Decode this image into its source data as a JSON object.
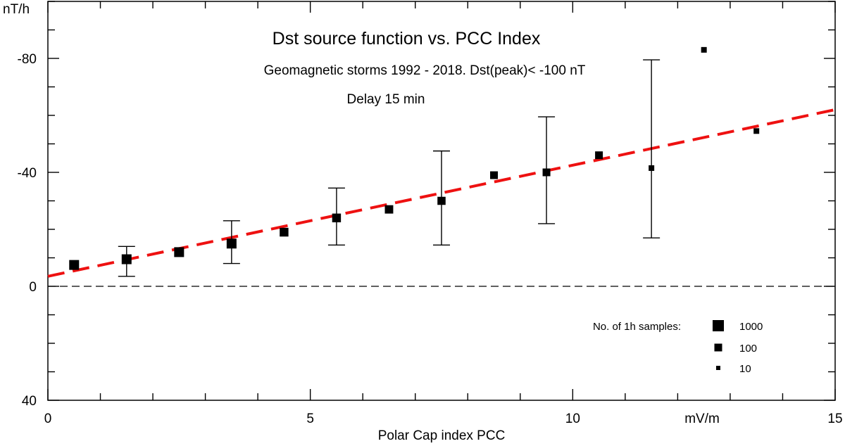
{
  "chart_data": {
    "type": "scatter",
    "title": "Dst source function vs. PCC Index",
    "subtitle": "Geomagnetic storms 1992 - 2018.   Dst(peak)< -100 nT",
    "annotation": "Delay 15 min",
    "xlabel": "Polar Cap index  PCC",
    "x_unit": "mV/m",
    "ylabel": "nT/h",
    "xlim": [
      0,
      15
    ],
    "ylim": [
      40,
      -100
    ],
    "y_inverted": true,
    "x_ticks": [
      0,
      5,
      10,
      15
    ],
    "x_tick_labels": [
      "0",
      "5",
      "10",
      "15"
    ],
    "y_ticks": [
      -80,
      -40,
      0,
      40
    ],
    "y_tick_labels": [
      "-80",
      "-40",
      "0",
      "40"
    ],
    "zero_line": true,
    "fit_line": {
      "style": "dashed",
      "color": "#ee1111",
      "x": [
        0,
        15
      ],
      "y": [
        -3.5,
        -62
      ]
    },
    "series": [
      {
        "name": "Dst source function",
        "points": [
          {
            "x": 0.5,
            "y": -7.5,
            "n": 1000
          },
          {
            "x": 1.5,
            "y": -9.5,
            "n": 1000,
            "err_low": -3.5,
            "err_high": -14
          },
          {
            "x": 2.5,
            "y": -12,
            "n": 1000
          },
          {
            "x": 3.5,
            "y": -15,
            "n": 1000,
            "err_low": -8,
            "err_high": -23
          },
          {
            "x": 4.5,
            "y": -19,
            "n": 300
          },
          {
            "x": 5.5,
            "y": -24,
            "n": 300,
            "err_low": -14.5,
            "err_high": -34.5
          },
          {
            "x": 6.5,
            "y": -27,
            "n": 200
          },
          {
            "x": 7.5,
            "y": -30,
            "n": 150,
            "err_low": -14.5,
            "err_high": -47.5
          },
          {
            "x": 8.5,
            "y": -39,
            "n": 100
          },
          {
            "x": 9.5,
            "y": -40,
            "n": 100,
            "err_low": -22,
            "err_high": -59.5
          },
          {
            "x": 10.5,
            "y": -46,
            "n": 100
          },
          {
            "x": 11.5,
            "y": -41.5,
            "n": 10,
            "err_low": -17,
            "err_high": -79.5
          },
          {
            "x": 12.5,
            "y": -83,
            "n": 10
          },
          {
            "x": 13.5,
            "y": -54.5,
            "n": 10
          }
        ]
      }
    ],
    "legend": {
      "title": "No. of 1h samples:",
      "placement": "bottom-right",
      "entries": [
        {
          "label": "1000",
          "n": 1000
        },
        {
          "label": "100",
          "n": 100
        },
        {
          "label": "10",
          "n": 10
        }
      ]
    }
  },
  "colors": {
    "axis": "#000000",
    "fit": "#ee1111",
    "marker": "#000000"
  }
}
